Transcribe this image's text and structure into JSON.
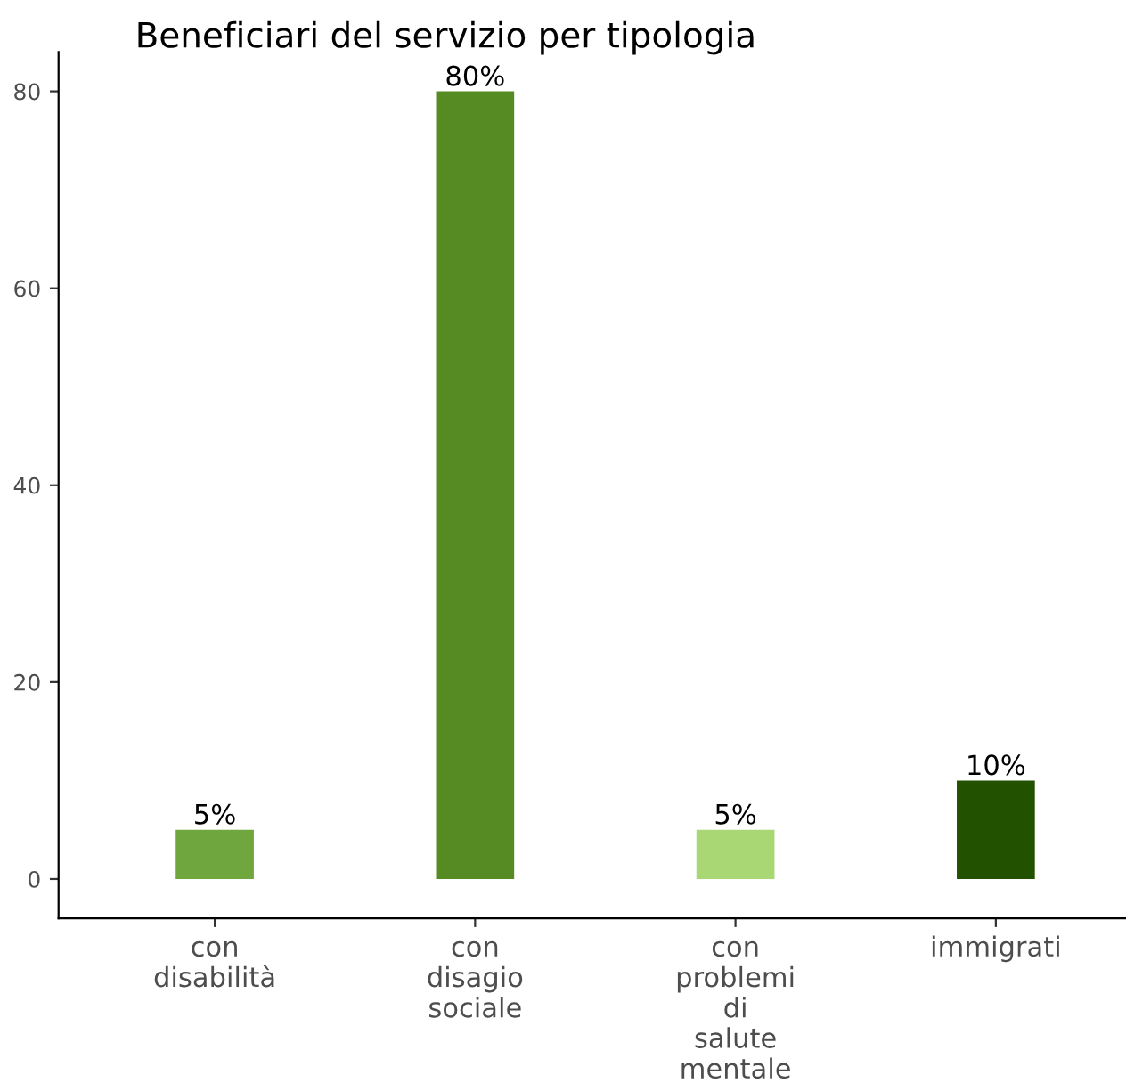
{
  "chart_data": {
    "type": "bar",
    "title": "Beneficiari del servizio per tipologia",
    "categories": [
      "con\ndisabilità",
      "con\ndisagio\nsociale",
      "con\nproblemi\ndi\nsalute\nmentale",
      "immigrati"
    ],
    "values": [
      5,
      80,
      5,
      10
    ],
    "colors": [
      "#6fa73e",
      "#568b24",
      "#a9d774",
      "#225200"
    ],
    "value_labels": [
      "5%",
      "80%",
      "5%",
      "10%"
    ],
    "ylim": [
      -4,
      84
    ],
    "yticks": [
      0,
      20,
      40,
      60,
      80
    ],
    "grid": false,
    "legend": false
  }
}
